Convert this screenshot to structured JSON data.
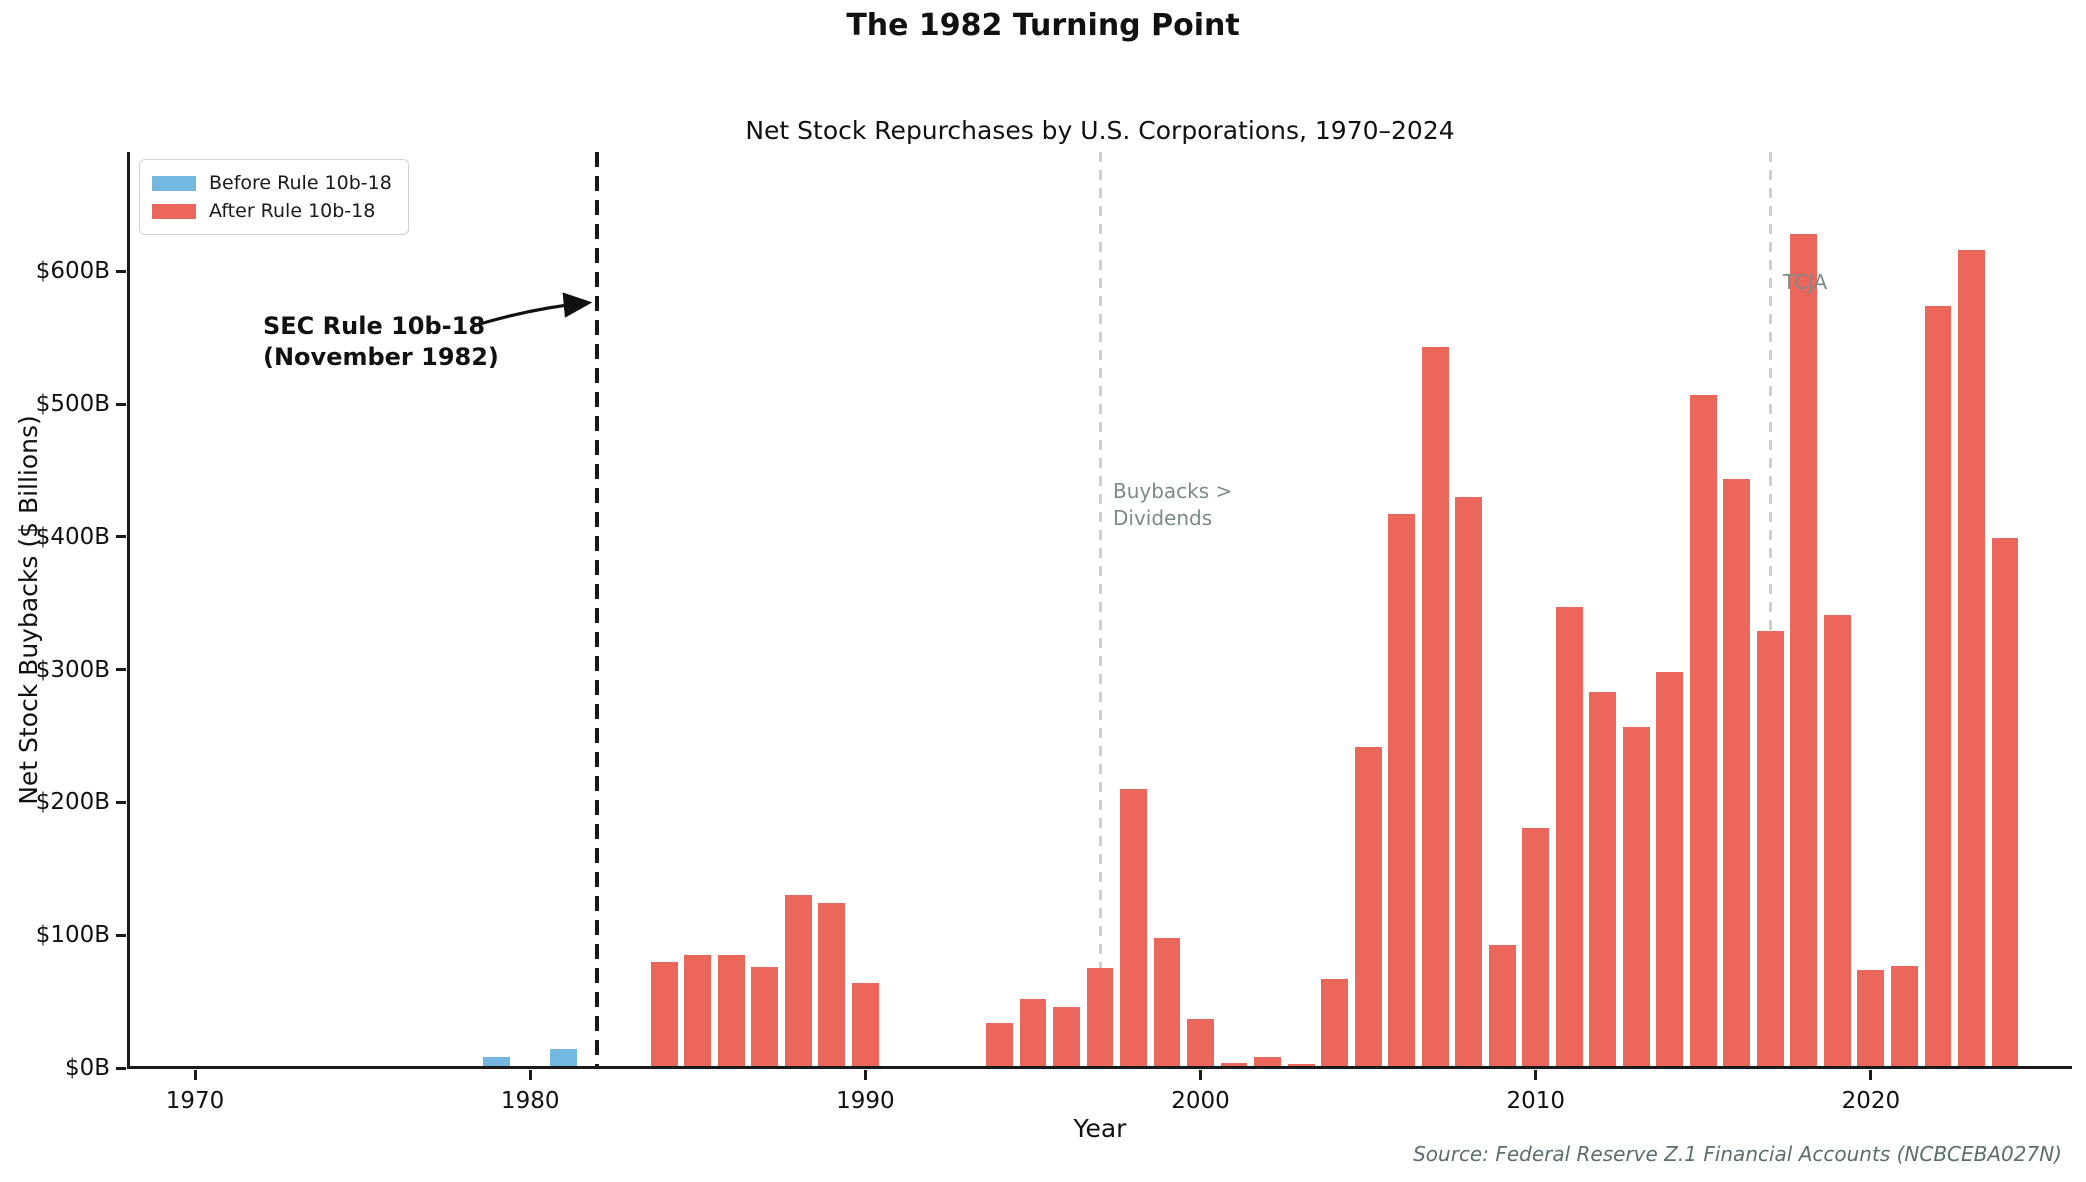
{
  "title": "The 1982 Turning Point",
  "subtitle": "Net Stock Repurchases by U.S. Corporations, 1970–2024",
  "legend": {
    "items": [
      {
        "label": "Before Rule 10b-18",
        "color": "#74B8E2"
      },
      {
        "label": "After Rule 10b-18",
        "color": "#EB675B"
      }
    ]
  },
  "annotations": {
    "sec_rule": {
      "line1": "SEC Rule 10b-18",
      "line2": "(November 1982)",
      "year": 1982
    },
    "buybacks_gt_dividends": {
      "line1": "Buybacks >",
      "line2": "Dividends",
      "year": 1997
    },
    "tcja": {
      "label": "TCJA",
      "year": 2017
    }
  },
  "source_note": "Source: Federal Reserve Z.1 Financial Accounts (NCBCEBA027N)",
  "colors": {
    "before": "#74B8E2",
    "after": "#EB675B",
    "rule_line": "#161616",
    "event_line": "#cbd0d3"
  },
  "chart_data": {
    "type": "bar",
    "title": "Net Stock Repurchases by U.S. Corporations, 1970–2024",
    "xlabel": "Year",
    "ylabel": "Net Stock Buybacks ($ Billions)",
    "xlim": [
      1968,
      2026
    ],
    "ylim": [
      0,
      690
    ],
    "grid": false,
    "legend_position": "upper left",
    "rule_year": 1982,
    "x_ticks": [
      1970,
      1980,
      1990,
      2000,
      2010,
      2020
    ],
    "y_ticks": [
      {
        "value": 0,
        "label": "$0B"
      },
      {
        "value": 100,
        "label": "$100B"
      },
      {
        "value": 200,
        "label": "$200B"
      },
      {
        "value": 300,
        "label": "$300B"
      },
      {
        "value": 400,
        "label": "$400B"
      },
      {
        "value": 500,
        "label": "$500B"
      },
      {
        "value": 600,
        "label": "$600B"
      }
    ],
    "years": [
      1970,
      1971,
      1972,
      1973,
      1974,
      1975,
      1976,
      1977,
      1978,
      1979,
      1980,
      1981,
      1982,
      1983,
      1984,
      1985,
      1986,
      1987,
      1988,
      1989,
      1990,
      1991,
      1992,
      1993,
      1994,
      1995,
      1996,
      1997,
      1998,
      1999,
      2000,
      2001,
      2002,
      2003,
      2004,
      2005,
      2006,
      2007,
      2008,
      2009,
      2010,
      2011,
      2012,
      2013,
      2014,
      2015,
      2016,
      2017,
      2018,
      2019,
      2020,
      2021,
      2022,
      2023,
      2024
    ],
    "values": [
      0,
      0,
      0,
      0,
      0,
      0,
      0,
      0,
      0,
      8,
      0,
      14,
      0,
      0,
      80,
      85,
      85,
      76,
      130,
      124,
      64,
      0,
      0,
      0,
      34,
      52,
      46,
      75,
      210,
      98,
      37,
      4,
      8,
      3,
      67,
      242,
      417,
      543,
      430,
      93,
      181,
      347,
      283,
      257,
      298,
      507,
      444,
      329,
      628,
      341,
      74,
      77,
      574,
      616,
      399
    ],
    "series": [
      {
        "name": "Before Rule 10b-18",
        "color": "#74B8E2",
        "applies_to": "years before 1982"
      },
      {
        "name": "After Rule 10b-18",
        "color": "#EB675B",
        "applies_to": "years 1982 and later"
      }
    ],
    "vlines": [
      {
        "year": 1982,
        "color": "#161616",
        "style": "dashed",
        "major": true,
        "label": "SEC Rule 10b-18 (November 1982)"
      },
      {
        "year": 1997,
        "color": "#cbd0d3",
        "style": "dashed",
        "major": false,
        "label": "Buybacks > Dividends"
      },
      {
        "year": 2017,
        "color": "#cbd0d3",
        "style": "dashed",
        "major": false,
        "label": "TCJA"
      }
    ]
  }
}
